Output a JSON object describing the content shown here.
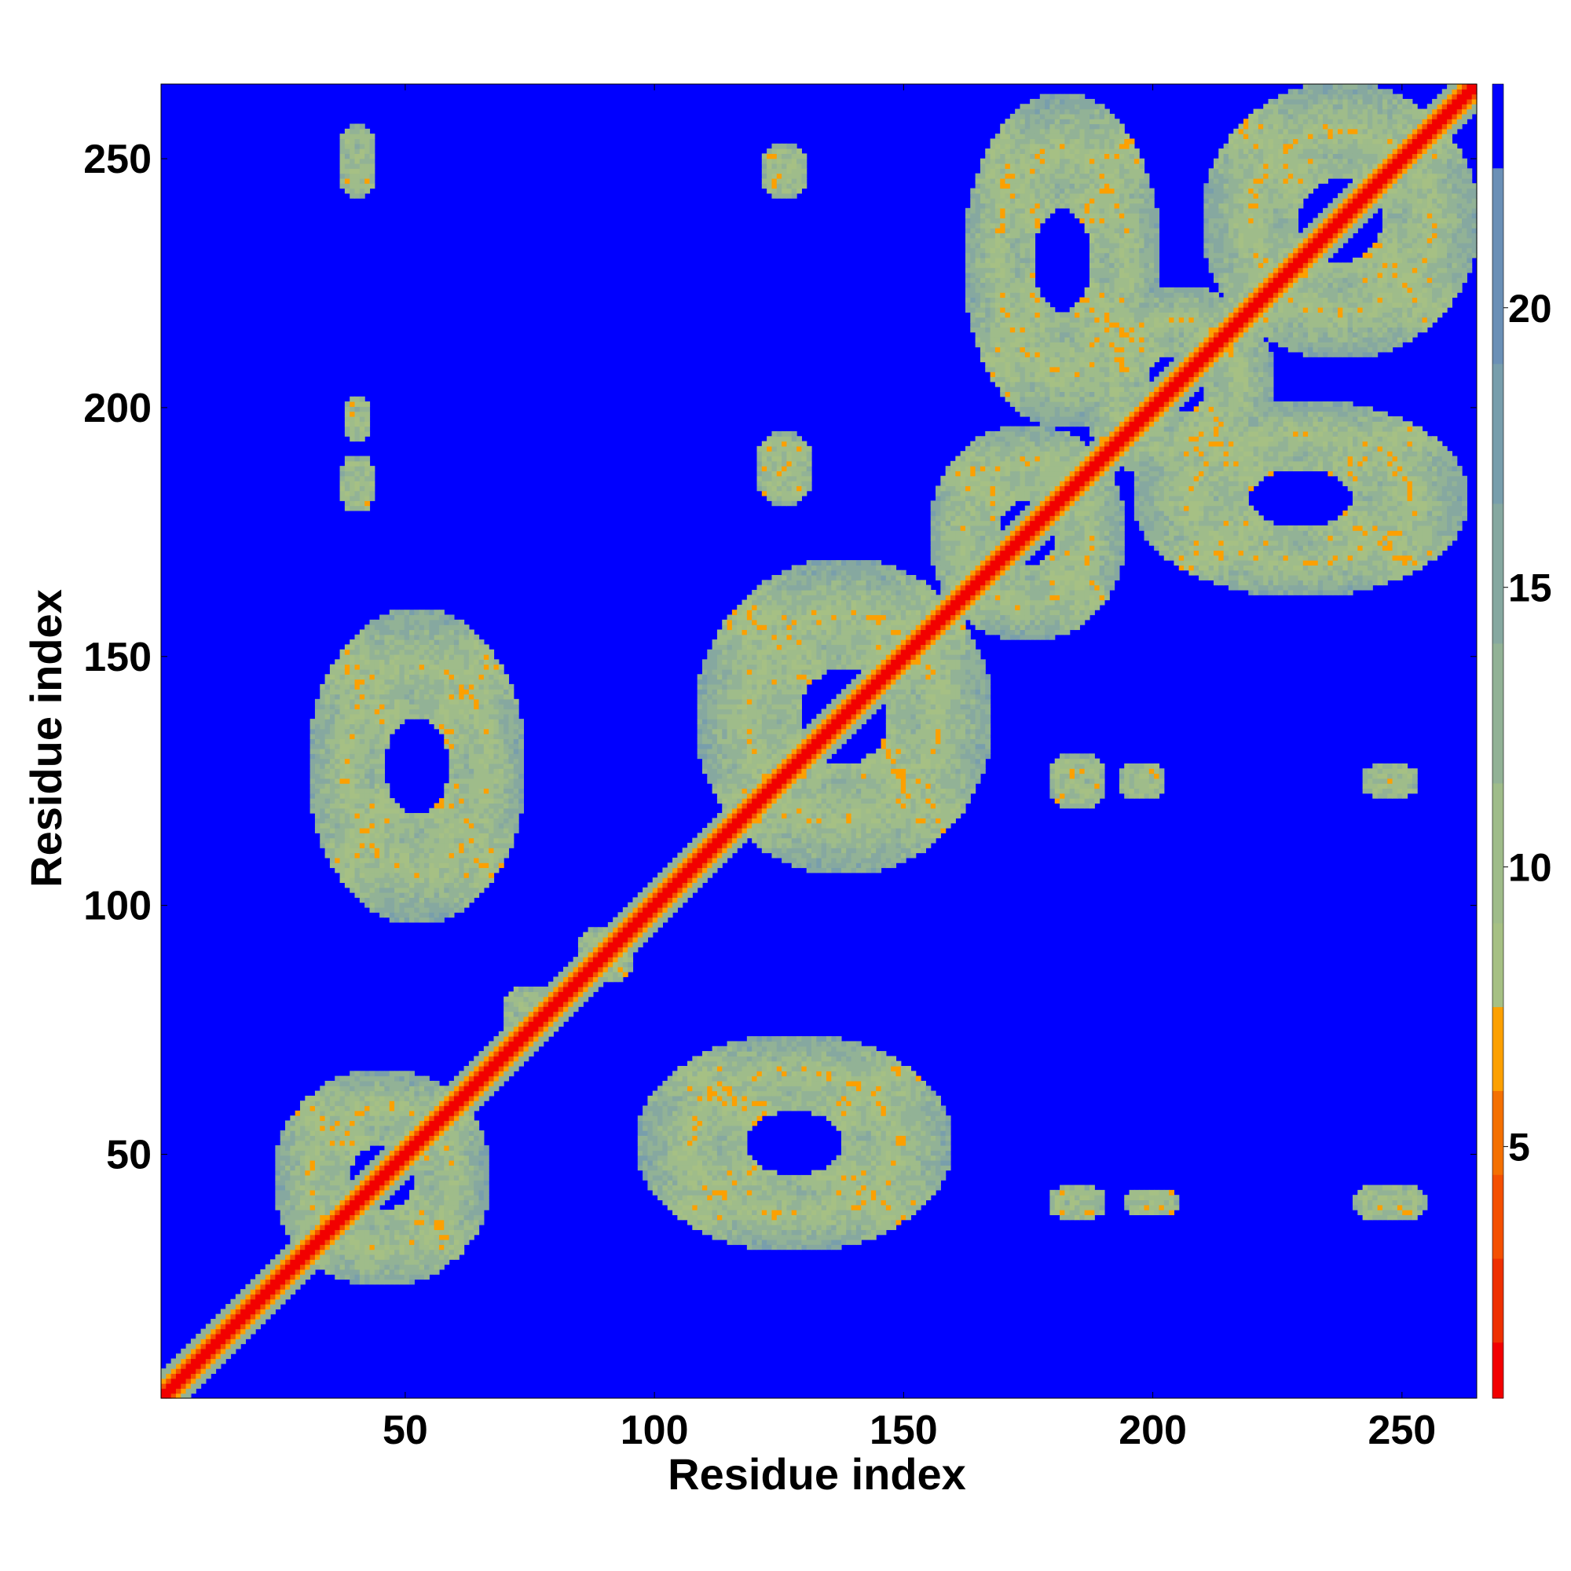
{
  "chart_data": {
    "type": "heatmap",
    "title": "",
    "xlabel": "Residue index",
    "ylabel": "Residue index",
    "xlim": [
      1,
      265
    ],
    "ylim": [
      1,
      265
    ],
    "x_ticks": [
      50,
      100,
      150,
      200,
      250
    ],
    "y_ticks": [
      50,
      100,
      150,
      200,
      250
    ],
    "colorbar": {
      "ticks": [
        5,
        10,
        15,
        20
      ],
      "range": [
        0.5,
        24
      ],
      "levels": [
        {
          "max": 1.5,
          "color": "#f20000"
        },
        {
          "max": 3.0,
          "color": "#ee3000"
        },
        {
          "max": 4.5,
          "color": "#f45000"
        },
        {
          "max": 6.0,
          "color": "#f47000"
        },
        {
          "max": 7.5,
          "color": "#fca000"
        },
        {
          "max": 9.0,
          "color": "#a6c084"
        },
        {
          "max": 11.5,
          "color": "#9fbc8a"
        },
        {
          "max": 14.0,
          "color": "#92b296"
        },
        {
          "max": 16.5,
          "color": "#86a8a0"
        },
        {
          "max": 19.0,
          "color": "#789eac"
        },
        {
          "max": 22.5,
          "color": "#6b90b6"
        },
        {
          "max": 24.0,
          "color": "#0000ff"
        }
      ]
    },
    "background_color": "#0000ff",
    "diagonal_band": {
      "core_value": 1.0,
      "halfwidth": 3
    },
    "contact_clusters": [
      {
        "x": 45,
        "y": 45,
        "rx": 22,
        "ry": 22
      },
      {
        "x": 138,
        "y": 138,
        "rx": 30,
        "ry": 32
      },
      {
        "x": 90,
        "y": 90,
        "rx": 6,
        "ry": 6
      },
      {
        "x": 75,
        "y": 78,
        "rx": 6,
        "ry": 6
      },
      {
        "x": 175,
        "y": 175,
        "rx": 20,
        "ry": 22
      },
      {
        "x": 205,
        "y": 205,
        "rx": 20,
        "ry": 20
      },
      {
        "x": 238,
        "y": 238,
        "rx": 28,
        "ry": 28
      },
      {
        "x": 52,
        "y": 128,
        "rx": 22,
        "ry": 32
      },
      {
        "x": 128,
        "y": 52,
        "rx": 32,
        "ry": 22
      },
      {
        "x": 182,
        "y": 230,
        "rx": 20,
        "ry": 34
      },
      {
        "x": 230,
        "y": 182,
        "rx": 34,
        "ry": 20
      },
      {
        "x": 40,
        "y": 250,
        "rx": 4,
        "ry": 8
      },
      {
        "x": 40,
        "y": 185,
        "rx": 4,
        "ry": 6
      },
      {
        "x": 40,
        "y": 198,
        "rx": 3,
        "ry": 5
      },
      {
        "x": 126,
        "y": 188,
        "rx": 6,
        "ry": 8
      },
      {
        "x": 126,
        "y": 248,
        "rx": 5,
        "ry": 6
      },
      {
        "x": 185,
        "y": 125,
        "rx": 6,
        "ry": 6
      },
      {
        "x": 198,
        "y": 125,
        "rx": 5,
        "ry": 4
      },
      {
        "x": 185,
        "y": 40,
        "rx": 6,
        "ry": 4
      },
      {
        "x": 200,
        "y": 40,
        "rx": 6,
        "ry": 3
      },
      {
        "x": 248,
        "y": 40,
        "rx": 8,
        "ry": 4
      },
      {
        "x": 248,
        "y": 125,
        "rx": 6,
        "ry": 4
      }
    ]
  }
}
